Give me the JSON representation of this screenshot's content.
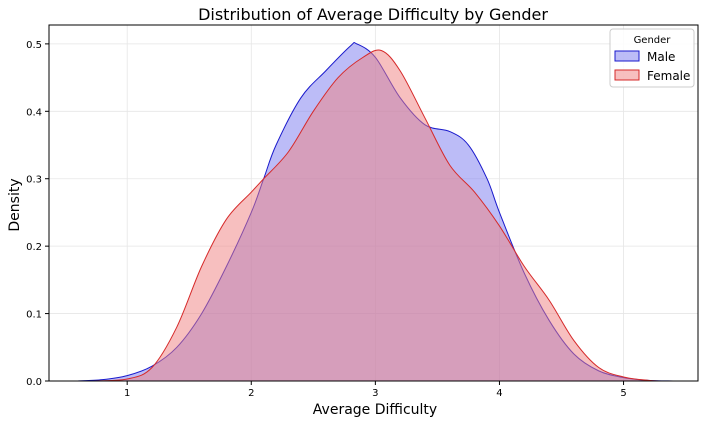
{
  "chart_data": {
    "type": "area",
    "title": "Distribution of Average Difficulty by Gender",
    "xlabel": "Average Difficulty",
    "ylabel": "Density",
    "xlim": [
      0.37,
      5.6
    ],
    "ylim": [
      0,
      0.528
    ],
    "xticks": [
      1,
      2,
      3,
      4,
      5
    ],
    "yticks": [
      0.0,
      0.1,
      0.2,
      0.3,
      0.4,
      0.5
    ],
    "ytick_labels": [
      "0.0",
      "0.1",
      "0.2",
      "0.3",
      "0.4",
      "0.5"
    ],
    "grid": true,
    "legend": {
      "title": "Gender",
      "placement": "top-right"
    },
    "series": [
      {
        "name": "Male",
        "line_color": "#1a1acc",
        "fill_color": "#7a7af0",
        "x": [
          0.6,
          0.8,
          1.0,
          1.2,
          1.4,
          1.6,
          1.8,
          2.0,
          2.1,
          2.2,
          2.4,
          2.6,
          2.8,
          2.85,
          3.0,
          3.2,
          3.4,
          3.6,
          3.75,
          3.9,
          4.0,
          4.2,
          4.4,
          4.6,
          4.8,
          5.0,
          5.2,
          5.4
        ],
        "y": [
          0,
          0.002,
          0.008,
          0.022,
          0.05,
          0.1,
          0.17,
          0.25,
          0.3,
          0.35,
          0.42,
          0.46,
          0.497,
          0.5,
          0.48,
          0.42,
          0.38,
          0.37,
          0.35,
          0.3,
          0.25,
          0.16,
          0.09,
          0.04,
          0.015,
          0.005,
          0.001,
          0
        ]
      },
      {
        "name": "Female",
        "line_color": "#d62a2a",
        "fill_color": "#f08080",
        "x": [
          0.7,
          1.0,
          1.2,
          1.4,
          1.6,
          1.8,
          2.0,
          2.1,
          2.3,
          2.5,
          2.7,
          2.9,
          3.05,
          3.2,
          3.4,
          3.6,
          3.8,
          4.0,
          4.2,
          4.4,
          4.6,
          4.8,
          5.0,
          5.2,
          5.3
        ],
        "y": [
          0,
          0.003,
          0.02,
          0.08,
          0.17,
          0.24,
          0.28,
          0.3,
          0.34,
          0.4,
          0.45,
          0.48,
          0.49,
          0.46,
          0.39,
          0.32,
          0.28,
          0.23,
          0.17,
          0.12,
          0.06,
          0.02,
          0.006,
          0.001,
          0
        ]
      }
    ]
  }
}
